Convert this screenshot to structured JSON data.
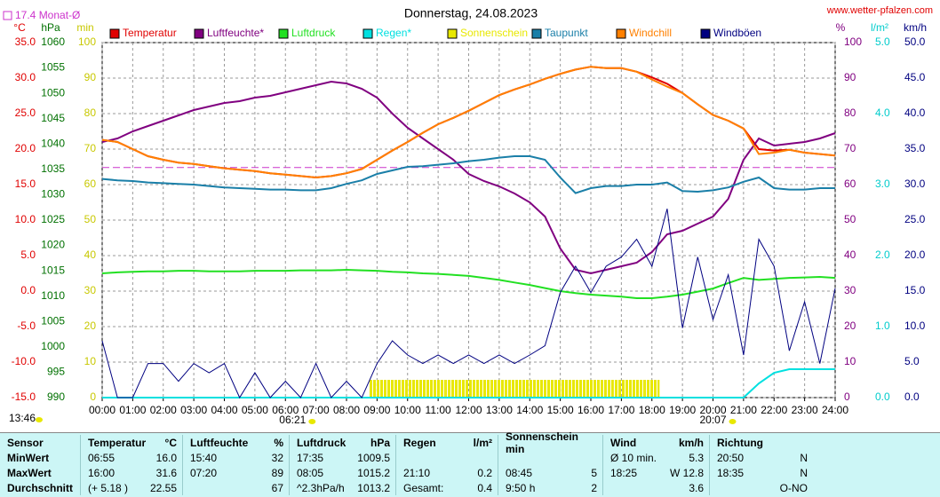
{
  "chart_data": {
    "type": "line",
    "title": "Donnerstag, 24.08.2023",
    "source": "www.wetter-pfalzen.com",
    "monthly_mean": {
      "value": 17.4,
      "label": "17.4 Monat-Ø",
      "color": "#cc33cc"
    },
    "updated": "13:46",
    "sunrise": "06:21",
    "sunset": "20:07",
    "grid": true,
    "x": [
      0,
      0.5,
      1,
      1.5,
      2,
      2.5,
      3,
      3.5,
      4,
      4.5,
      5,
      5.5,
      6,
      6.5,
      7,
      7.5,
      8,
      8.5,
      9,
      9.5,
      10,
      10.5,
      11,
      11.5,
      12,
      12.5,
      13,
      13.5,
      14,
      14.5,
      15,
      15.5,
      16,
      16.5,
      17,
      17.5,
      18,
      18.5,
      19,
      19.5,
      20,
      20.5,
      21,
      21.5,
      22,
      22.5,
      23,
      23.5,
      24
    ],
    "xlim": [
      0,
      24
    ],
    "xticks": [
      {
        "value": 0,
        "label": "00:00"
      },
      {
        "value": 1,
        "label": "01:00"
      },
      {
        "value": 2,
        "label": "02:00"
      },
      {
        "value": 3,
        "label": "03:00"
      },
      {
        "value": 4,
        "label": "04:00"
      },
      {
        "value": 5,
        "label": "05:00"
      },
      {
        "value": 6,
        "label": "06:00"
      },
      {
        "value": 7,
        "label": "07:00"
      },
      {
        "value": 8,
        "label": "08:00"
      },
      {
        "value": 9,
        "label": "09:00"
      },
      {
        "value": 10,
        "label": "10:00"
      },
      {
        "value": 11,
        "label": "11:00"
      },
      {
        "value": 12,
        "label": "12:00"
      },
      {
        "value": 13,
        "label": "13:00"
      },
      {
        "value": 14,
        "label": "14:00"
      },
      {
        "value": 15,
        "label": "15:00"
      },
      {
        "value": 16,
        "label": "16:00"
      },
      {
        "value": 17,
        "label": "17:00"
      },
      {
        "value": 18,
        "label": "18:00"
      },
      {
        "value": 19,
        "label": "19:00"
      },
      {
        "value": 20,
        "label": "20:00"
      },
      {
        "value": 21,
        "label": "21:00"
      },
      {
        "value": 22,
        "label": "22:00"
      },
      {
        "value": 23,
        "label": "23:00"
      },
      {
        "value": 24,
        "label": "24:00"
      }
    ],
    "axes": {
      "c": {
        "unit": "°C",
        "color": "#e00000",
        "lim": [
          -15,
          35
        ],
        "ticks": [
          {
            "value": 35,
            "label": "35.0"
          },
          {
            "value": 30,
            "label": "30.0"
          },
          {
            "value": 25,
            "label": "25.0"
          },
          {
            "value": 20,
            "label": "20.0"
          },
          {
            "value": 15,
            "label": "15.0"
          },
          {
            "value": 10,
            "label": "10.0"
          },
          {
            "value": 5,
            "label": "5.0"
          },
          {
            "value": 0,
            "label": "0.0"
          },
          {
            "value": -5,
            "label": "-5.0"
          },
          {
            "value": -10,
            "label": "-10.0"
          },
          {
            "value": -15,
            "label": "-15.0"
          }
        ]
      },
      "hpa": {
        "unit": "hPa",
        "color": "#007000",
        "lim": [
          990,
          1060
        ],
        "ticks": [
          1060,
          1055,
          1050,
          1045,
          1040,
          1035,
          1030,
          1025,
          1020,
          1015,
          1010,
          1005,
          1000,
          995,
          990
        ]
      },
      "min": {
        "unit": "min",
        "color": "#c8c800",
        "lim": [
          0,
          100
        ],
        "ticks": [
          100,
          90,
          80,
          70,
          60,
          50,
          40,
          30,
          20,
          10,
          0
        ]
      },
      "pct": {
        "unit": "%",
        "color": "#800080",
        "lim": [
          0,
          100
        ],
        "ticks": [
          100,
          90,
          80,
          70,
          60,
          50,
          40,
          30,
          20,
          10,
          0
        ]
      },
      "rain": {
        "unit": "l/m²",
        "color": "#00cccc",
        "lim": [
          0,
          5
        ],
        "ticks": [
          {
            "value": 5,
            "label": "5.0"
          },
          {
            "value": 4,
            "label": "4.0"
          },
          {
            "value": 3,
            "label": "3.0"
          },
          {
            "value": 2,
            "label": "2.0"
          },
          {
            "value": 1,
            "label": "1.0"
          },
          {
            "value": 0,
            "label": "0.0"
          }
        ]
      },
      "wind": {
        "unit": "km/h",
        "color": "#000080",
        "lim": [
          0,
          50
        ],
        "ticks": [
          {
            "value": 50,
            "label": "50.0"
          },
          {
            "value": 45,
            "label": "45.0"
          },
          {
            "value": 40,
            "label": "40.0"
          },
          {
            "value": 35,
            "label": "35.0"
          },
          {
            "value": 30,
            "label": "30.0"
          },
          {
            "value": 25,
            "label": "25.0"
          },
          {
            "value": 20,
            "label": "20.0"
          },
          {
            "value": 15,
            "label": "15.0"
          },
          {
            "value": 10,
            "label": "10.0"
          },
          {
            "value": 5,
            "label": "5.0"
          },
          {
            "value": 0,
            "label": "0.0"
          }
        ]
      }
    },
    "series": [
      {
        "name": "Temperatur",
        "color": "#e00000",
        "axis": "c",
        "kind": "line",
        "values": [
          21.3,
          21.0,
          20.0,
          19.0,
          18.5,
          18.1,
          17.9,
          17.6,
          17.3,
          17.1,
          16.9,
          16.6,
          16.4,
          16.2,
          16.0,
          16.2,
          16.6,
          17.2,
          18.5,
          19.8,
          21.0,
          22.3,
          23.5,
          24.4,
          25.4,
          26.5,
          27.6,
          28.4,
          29.1,
          29.9,
          30.6,
          31.2,
          31.6,
          31.4,
          31.4,
          30.9,
          30.1,
          29.2,
          27.9,
          26.3,
          24.8,
          24.0,
          22.9,
          20.0,
          19.8,
          19.9,
          19.5,
          19.3,
          19.1
        ]
      },
      {
        "name": "Luftfeuchte*",
        "color": "#800080",
        "axis": "pct",
        "kind": "line",
        "values": [
          72,
          73,
          75,
          76.5,
          78,
          79.5,
          81,
          82,
          83,
          83.5,
          84.5,
          85,
          86,
          87,
          88,
          89,
          88.5,
          87,
          84.5,
          80,
          76,
          73,
          70,
          67,
          63,
          61,
          59.5,
          57.5,
          55,
          51,
          42,
          36,
          35,
          36,
          37,
          38,
          41,
          46,
          47,
          49,
          51,
          56,
          67,
          73,
          71,
          71.5,
          72,
          73,
          74.5
        ]
      },
      {
        "name": "Luftdruck",
        "color": "#22e022",
        "axis": "hpa",
        "kind": "line",
        "values": [
          1014.5,
          1014.7,
          1014.8,
          1014.9,
          1014.9,
          1015.0,
          1015.0,
          1014.9,
          1014.9,
          1014.9,
          1015.0,
          1015.0,
          1015.0,
          1015.1,
          1015.1,
          1015.1,
          1015.2,
          1015.1,
          1015.0,
          1014.8,
          1014.7,
          1014.5,
          1014.4,
          1014.2,
          1014.0,
          1013.6,
          1013.2,
          1012.7,
          1012.2,
          1011.6,
          1011.0,
          1010.6,
          1010.3,
          1010.1,
          1009.9,
          1009.6,
          1009.6,
          1009.9,
          1010.3,
          1010.9,
          1011.5,
          1012.6,
          1013.6,
          1013.2,
          1013.4,
          1013.6,
          1013.7,
          1013.8,
          1013.6
        ]
      },
      {
        "name": "Regen*",
        "color": "#00e0e0",
        "axis": "rain",
        "kind": "line",
        "values": [
          0,
          0,
          0,
          0,
          0,
          0,
          0,
          0,
          0,
          0,
          0,
          0,
          0,
          0,
          0,
          0,
          0,
          0,
          0,
          0,
          0,
          0,
          0,
          0,
          0,
          0,
          0,
          0,
          0,
          0,
          0,
          0,
          0,
          0,
          0,
          0,
          0,
          0,
          0,
          0,
          0,
          0,
          0,
          0.2,
          0.35,
          0.4,
          0.4,
          0.4,
          0.4
        ]
      },
      {
        "name": "Sonnenschein",
        "color": "#e8e800",
        "axis": "min",
        "kind": "bar",
        "values": [
          0,
          0,
          0,
          0,
          0,
          0,
          0,
          0,
          0,
          0,
          0,
          0,
          0,
          0,
          0,
          0,
          0,
          0,
          5,
          5,
          5,
          5,
          5,
          5,
          5,
          5,
          5,
          5,
          5,
          5,
          5,
          5,
          5,
          5,
          5,
          5,
          5,
          0,
          0,
          0,
          0,
          0,
          0,
          0,
          0,
          0,
          0,
          0,
          0
        ]
      },
      {
        "name": "Taupunkt",
        "color": "#1a7fa8",
        "axis": "c",
        "kind": "line",
        "values": [
          15.8,
          15.6,
          15.5,
          15.3,
          15.2,
          15.1,
          15.0,
          14.8,
          14.6,
          14.5,
          14.4,
          14.3,
          14.3,
          14.2,
          14.2,
          14.5,
          15.1,
          15.6,
          16.5,
          17.0,
          17.5,
          17.6,
          17.8,
          18.0,
          18.3,
          18.5,
          18.8,
          19.0,
          19.0,
          18.5,
          16.0,
          13.8,
          14.5,
          14.8,
          14.8,
          15.0,
          15.0,
          15.3,
          14.1,
          14.0,
          14.2,
          14.6,
          15.4,
          16.0,
          14.5,
          14.3,
          14.3,
          14.5,
          14.5
        ]
      },
      {
        "name": "Windchill",
        "color": "#ff8000",
        "axis": "c",
        "kind": "line",
        "values": [
          21.3,
          21.0,
          20.0,
          19.0,
          18.5,
          18.1,
          17.9,
          17.6,
          17.3,
          17.1,
          16.9,
          16.6,
          16.4,
          16.2,
          16.0,
          16.2,
          16.6,
          17.2,
          18.5,
          19.8,
          21.0,
          22.3,
          23.5,
          24.4,
          25.4,
          26.5,
          27.6,
          28.4,
          29.1,
          29.9,
          30.6,
          31.2,
          31.6,
          31.4,
          31.4,
          30.9,
          29.8,
          28.8,
          27.9,
          26.3,
          24.8,
          24.0,
          22.9,
          19.3,
          19.5,
          19.9,
          19.5,
          19.3,
          19.1
        ]
      },
      {
        "name": "Windböen",
        "color": "#000080",
        "axis": "wind",
        "kind": "line",
        "values": [
          8,
          0,
          0,
          4.8,
          4.8,
          2.3,
          4.8,
          3.5,
          4.8,
          0,
          3.5,
          0,
          2.3,
          0,
          4.8,
          0,
          2.3,
          0,
          4.8,
          8,
          6,
          4.8,
          6,
          4.8,
          6,
          4.8,
          6,
          4.8,
          6,
          7.3,
          14.8,
          18.5,
          14.8,
          18.5,
          19.8,
          22.3,
          18.5,
          26.6,
          9.8,
          19.8,
          11,
          17.3,
          6,
          22.3,
          18.5,
          6.6,
          13.5,
          4.8,
          15.4
        ]
      }
    ]
  },
  "table": {
    "header": [
      [
        "Sensor"
      ],
      [
        "Temperatur",
        "°C"
      ],
      [
        "Luftfeuchte",
        "%"
      ],
      [
        "Luftdruck",
        "hPa"
      ],
      [
        "Regen",
        "l/m²"
      ],
      [
        "Sonnenschein min"
      ],
      [
        "Wind",
        "km/h"
      ],
      [
        "Richtung"
      ]
    ],
    "rows": [
      {
        "label": "MinWert",
        "cells": [
          [
            "06:55",
            "16.0"
          ],
          [
            "15:40",
            "32"
          ],
          [
            "17:35",
            "1009.5"
          ],
          null,
          null,
          [
            "Ø 10 min.",
            "5.3"
          ],
          [
            "20:50",
            "N"
          ]
        ]
      },
      {
        "label": "MaxWert",
        "cells": [
          [
            "16:00",
            "31.6"
          ],
          [
            "07:20",
            "89"
          ],
          [
            "08:05",
            "1015.2"
          ],
          [
            "21:10",
            "0.2"
          ],
          [
            "08:45",
            "5"
          ],
          [
            "18:25",
            "W 12.8"
          ],
          [
            "18:35",
            "N"
          ]
        ]
      },
      {
        "label": "Durchschnitt",
        "cells": [
          [
            "(+ 5.18 )",
            "22.55"
          ],
          [
            null,
            "67"
          ],
          [
            "^2.3hPa/h",
            "1013.2"
          ],
          [
            "Gesamt:",
            "0.4"
          ],
          [
            "9:50 h",
            "2"
          ],
          [
            null,
            "3.6"
          ],
          [
            null,
            "O-NO"
          ]
        ]
      }
    ]
  }
}
